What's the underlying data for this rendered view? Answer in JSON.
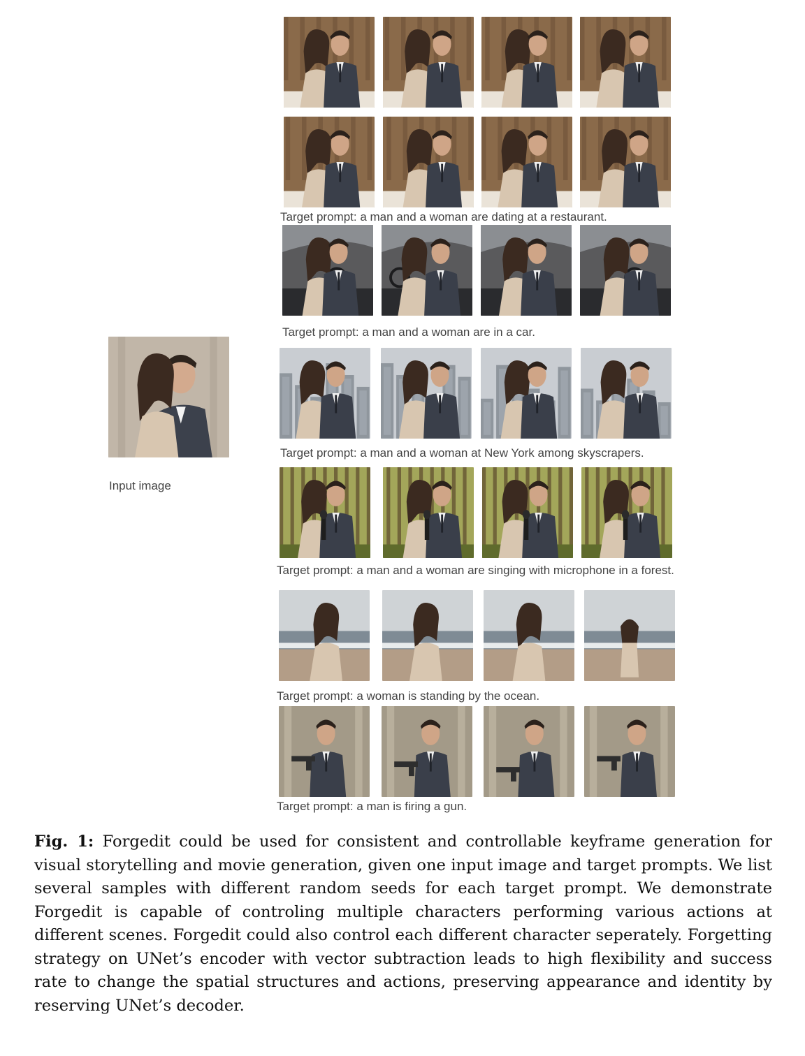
{
  "figure": {
    "input_image_label": "Input image",
    "input_image_alt": "woman-and-man-portrait",
    "rows": [
      {
        "prompt": "",
        "scene": "restaurant",
        "images": [
          "restaurant-sample-1",
          "restaurant-sample-2",
          "restaurant-sample-3",
          "restaurant-sample-4"
        ]
      },
      {
        "prompt": "Target prompt: a man and a woman are dating at a restaurant.",
        "scene": "restaurant",
        "images": [
          "restaurant-sample-5",
          "restaurant-sample-6",
          "restaurant-sample-7",
          "restaurant-sample-8"
        ]
      },
      {
        "prompt": "Target prompt: a man and a woman are in a car.",
        "scene": "car",
        "images": [
          "car-sample-1",
          "car-sample-2",
          "car-sample-3",
          "car-sample-4"
        ]
      },
      {
        "prompt": "Target prompt: a man and a woman at New York among skyscrapers.",
        "scene": "city",
        "images": [
          "newyork-sample-1",
          "newyork-sample-2",
          "newyork-sample-3",
          "newyork-sample-4"
        ]
      },
      {
        "prompt": "Target prompt: a man and a woman are singing with microphone in a forest.",
        "scene": "forest",
        "images": [
          "forest-sample-1",
          "forest-sample-2",
          "forest-sample-3",
          "forest-sample-4"
        ]
      },
      {
        "prompt": "Target prompt: a woman is standing by the ocean.",
        "scene": "ocean",
        "images": [
          "ocean-sample-1",
          "ocean-sample-2",
          "ocean-sample-3",
          "ocean-sample-4"
        ]
      },
      {
        "prompt": "Target prompt: a man is firing a gun.",
        "scene": "gun",
        "images": [
          "gun-sample-1",
          "gun-sample-2",
          "gun-sample-3",
          "gun-sample-4"
        ]
      }
    ],
    "caption_label": "Fig. 1:",
    "caption_text": "Forgedit could be used for consistent and controllable keyframe generation for visual storytelling and movie generation, given one input image and target prompts. We list several samples with different random seeds for each target prompt. We demonstrate Forgedit is capable of controling multiple characters performing various actions at different scenes. Forgedit could also control each different character seperately. Forgetting strategy on UNet’s encoder with vector subtraction leads to high flexibility and success rate to change the spatial structures and actions, preserving appearance and identity by reserving UNet’s decoder."
  },
  "colors": {
    "restaurant_bg": "#8a6a4a",
    "car_bg": "#5a5a5c",
    "city_bg": "#9aa2aa",
    "forest_bg": "#6f7a3a",
    "ocean_bg": "#b8bcc0",
    "gun_bg": "#a39a88",
    "portrait_bg": "#b9ada0",
    "suit": "#3a3f4a",
    "hair": "#3b2a20",
    "skin": "#d9b49a",
    "lace": "#d8c6b0"
  }
}
